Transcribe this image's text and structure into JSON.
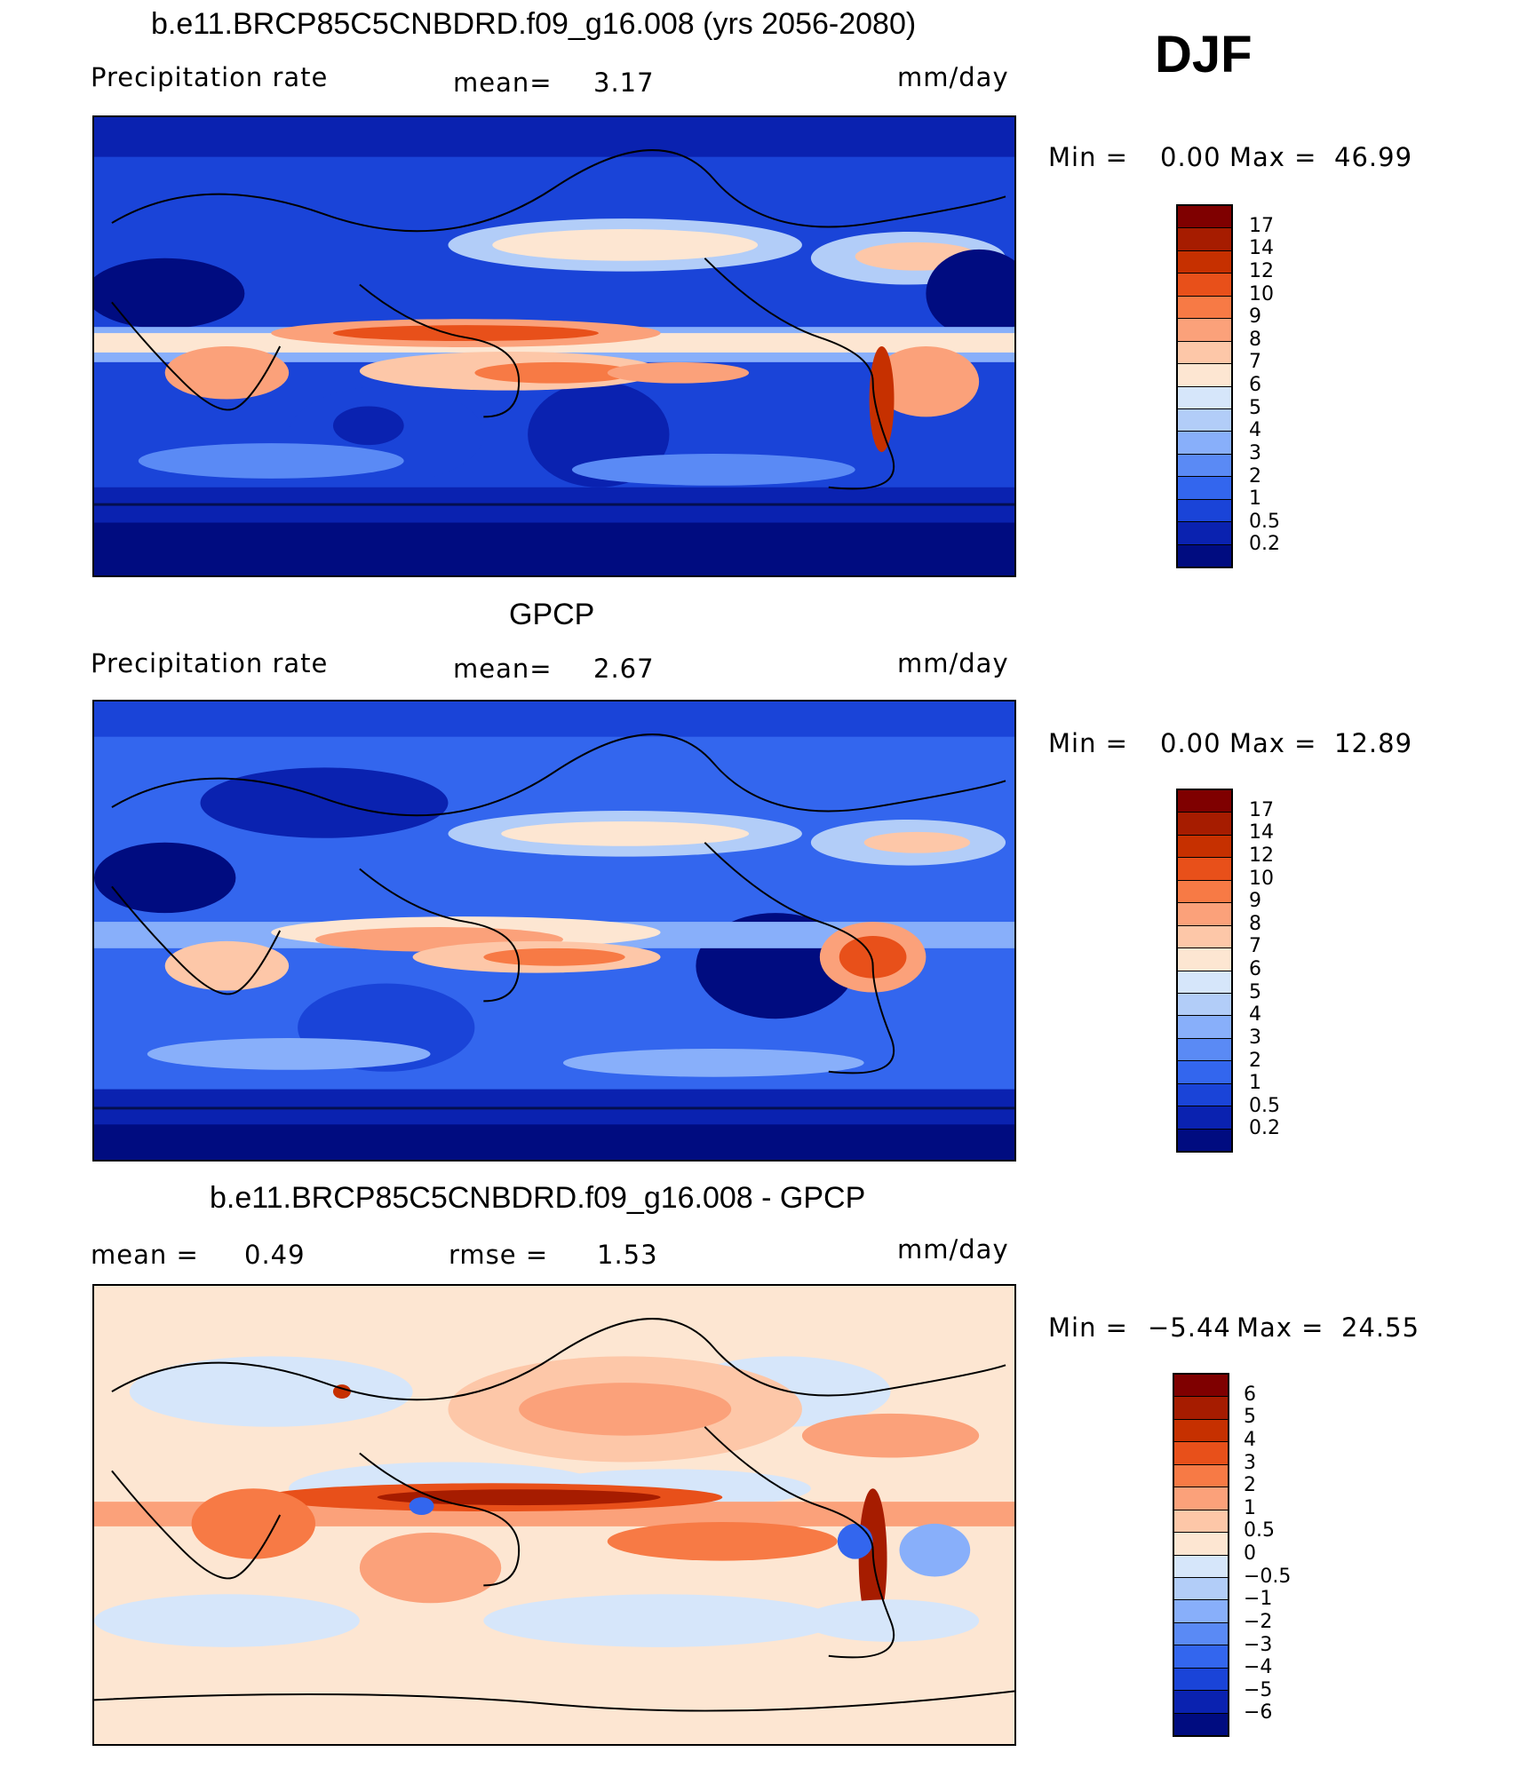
{
  "season": "DJF",
  "panels": [
    {
      "title": "b.e11.BRCP85C5CNBDRD.f09_g16.008 (yrs 2056-2080)",
      "left_label": "Precipitation rate",
      "mid_label": "mean=",
      "mid_value": "3.17",
      "right_label": "mm/day",
      "min_label": "Min =",
      "min_value": "0.00",
      "max_label": "Max =",
      "max_value": "46.99",
      "levels": [
        "17",
        "14",
        "12",
        "10",
        "9",
        "8",
        "7",
        "6",
        "5",
        "4",
        "3",
        "2",
        "1",
        "0.5",
        "0.2"
      ]
    },
    {
      "title": "GPCP",
      "left_label": "Precipitation rate",
      "mid_label": "mean=",
      "mid_value": "2.67",
      "right_label": "mm/day",
      "min_label": "Min =",
      "min_value": "0.00",
      "max_label": "Max =",
      "max_value": "12.89",
      "levels": [
        "17",
        "14",
        "12",
        "10",
        "9",
        "8",
        "7",
        "6",
        "5",
        "4",
        "3",
        "2",
        "1",
        "0.5",
        "0.2"
      ]
    },
    {
      "title": "b.e11.BRCP85C5CNBDRD.f09_g16.008 - GPCP",
      "left_label": "mean =",
      "left_value": "0.49",
      "mid_label": "rmse =",
      "mid_value": "1.53",
      "right_label": "mm/day",
      "min_label": "Min =",
      "min_value": "−5.44",
      "max_label": "Max =",
      "max_value": "24.55",
      "levels": [
        "6",
        "5",
        "4",
        "3",
        "2",
        "1",
        "0.5",
        "0",
        "−0.5",
        "−1",
        "−2",
        "−3",
        "−4",
        "−5",
        "−6"
      ]
    }
  ],
  "colors": {
    "precip_scale": [
      "#7f0000",
      "#a61c00",
      "#c63000",
      "#e8501a",
      "#f77a45",
      "#fba17a",
      "#fdc7a8",
      "#fde6d2",
      "#d6e6fa",
      "#b2cdf8",
      "#88affa",
      "#5a8af5",
      "#3366ee",
      "#1a44d8",
      "#0a22b0",
      "#000c80"
    ],
    "diff_scale": [
      "#7f0000",
      "#a61c00",
      "#c63000",
      "#e8501a",
      "#f77a45",
      "#fba17a",
      "#fdc7a8",
      "#fde6d2",
      "#d6e6fa",
      "#b2cdf8",
      "#88affa",
      "#5a8af5",
      "#3366ee",
      "#1a44d8",
      "#0a22b0",
      "#000c80"
    ]
  }
}
